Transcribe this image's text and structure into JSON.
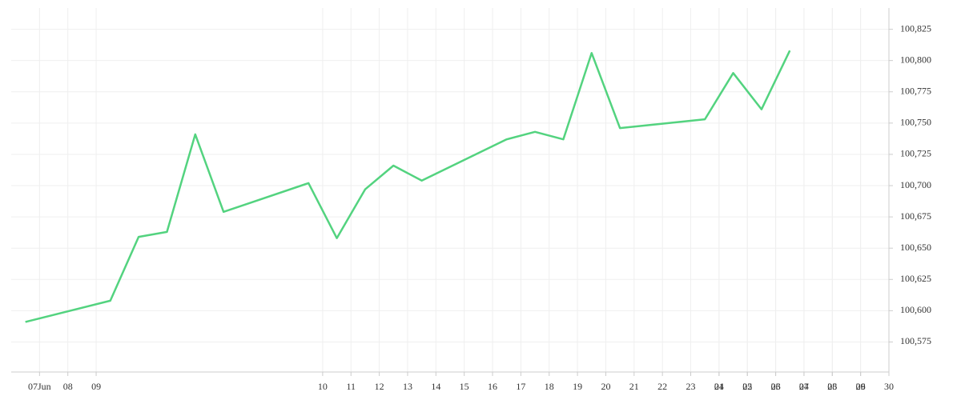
{
  "chart_data": {
    "type": "line",
    "x": [
      -0.5,
      2.5,
      3.5,
      4.5,
      5.5,
      6.5,
      9.5,
      10.5,
      11.5,
      12.5,
      13.5,
      16.5,
      17.5,
      18.5,
      19.5,
      20.5,
      23.5,
      24.5,
      25.5,
      26.5
    ],
    "series": [
      {
        "color": "#53d37f",
        "values": [
          100591,
          100608,
          100659,
          100663,
          100741,
          100679,
          100702,
          100658,
          100697,
          100716,
          100704,
          100737,
          100743,
          100737,
          100806,
          100746,
          100753,
          100790,
          100761,
          100808
        ]
      }
    ],
    "xlim": [
      -1,
      30
    ],
    "xticks": [
      {
        "value": 0,
        "label": "07Jun"
      },
      {
        "value": 1,
        "label": "08"
      },
      {
        "value": 2,
        "label": "09"
      },
      10,
      11,
      12,
      13,
      14,
      15,
      16,
      17,
      18,
      19,
      20,
      21,
      22,
      23,
      24,
      25,
      26,
      27,
      28,
      29,
      30,
      {
        "value": 24,
        "label": "01"
      },
      {
        "value": 25,
        "label": "02"
      },
      {
        "value": 26,
        "label": "03"
      },
      {
        "value": 27,
        "label": "04"
      },
      {
        "value": 28,
        "label": "05"
      },
      {
        "value": 29,
        "label": "06"
      }
    ],
    "ylim": [
      100551,
      100842
    ],
    "yticks": [
      {
        "value": 100575,
        "label": "100,575"
      },
      {
        "value": 100600,
        "label": "100,600"
      },
      {
        "value": 100625,
        "label": "100,625"
      },
      {
        "value": 100650,
        "label": "100,650"
      },
      {
        "value": 100675,
        "label": "100,675"
      },
      {
        "value": 100700,
        "label": "100,700"
      },
      {
        "value": 100725,
        "label": "100,725"
      },
      {
        "value": 100750,
        "label": "100,750"
      },
      {
        "value": 100775,
        "label": "100,775"
      },
      {
        "value": 100800,
        "label": "100,800"
      },
      {
        "value": 100825,
        "label": "100,825"
      }
    ],
    "grid": true
  }
}
